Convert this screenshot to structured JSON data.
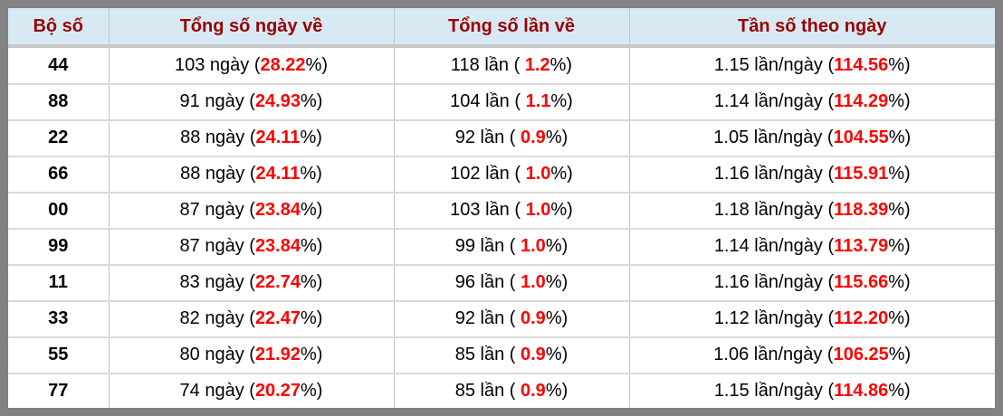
{
  "table": {
    "headers": [
      "Bộ số",
      "Tổng số ngày về",
      "Tổng số lần về",
      "Tần số theo ngày"
    ],
    "rows": [
      {
        "pair": "44",
        "days": {
          "pre": "103 ngày (",
          "pct": "28.22",
          "post": "%)"
        },
        "times": {
          "pre": "118 lần ( ",
          "pct": "1.2",
          "post": "%)"
        },
        "freq": {
          "pre": "1.15 lần/ngày (",
          "pct": "114.56",
          "post": "%)"
        }
      },
      {
        "pair": "88",
        "days": {
          "pre": "91 ngày (",
          "pct": "24.93",
          "post": "%)"
        },
        "times": {
          "pre": "104 lần ( ",
          "pct": "1.1",
          "post": "%)"
        },
        "freq": {
          "pre": "1.14 lần/ngày (",
          "pct": "114.29",
          "post": "%)"
        }
      },
      {
        "pair": "22",
        "days": {
          "pre": "88 ngày (",
          "pct": "24.11",
          "post": "%)"
        },
        "times": {
          "pre": "92 lần ( ",
          "pct": "0.9",
          "post": "%)"
        },
        "freq": {
          "pre": "1.05 lần/ngày (",
          "pct": "104.55",
          "post": "%)"
        }
      },
      {
        "pair": "66",
        "days": {
          "pre": "88 ngày (",
          "pct": "24.11",
          "post": "%)"
        },
        "times": {
          "pre": "102 lần ( ",
          "pct": "1.0",
          "post": "%)"
        },
        "freq": {
          "pre": "1.16 lần/ngày (",
          "pct": "115.91",
          "post": "%)"
        }
      },
      {
        "pair": "00",
        "days": {
          "pre": "87 ngày (",
          "pct": "23.84",
          "post": "%)"
        },
        "times": {
          "pre": "103 lần ( ",
          "pct": "1.0",
          "post": "%)"
        },
        "freq": {
          "pre": "1.18 lần/ngày (",
          "pct": "118.39",
          "post": "%)"
        }
      },
      {
        "pair": "99",
        "days": {
          "pre": "87 ngày (",
          "pct": "23.84",
          "post": "%)"
        },
        "times": {
          "pre": "99 lần ( ",
          "pct": "1.0",
          "post": "%)"
        },
        "freq": {
          "pre": "1.14 lần/ngày (",
          "pct": "113.79",
          "post": "%)"
        }
      },
      {
        "pair": "11",
        "days": {
          "pre": "83 ngày (",
          "pct": "22.74",
          "post": "%)"
        },
        "times": {
          "pre": "96 lần ( ",
          "pct": "1.0",
          "post": "%)"
        },
        "freq": {
          "pre": "1.16 lần/ngày (",
          "pct": "115.66",
          "post": "%)"
        }
      },
      {
        "pair": "33",
        "days": {
          "pre": "82 ngày (",
          "pct": "22.47",
          "post": "%)"
        },
        "times": {
          "pre": "92 lần ( ",
          "pct": "0.9",
          "post": "%)"
        },
        "freq": {
          "pre": "1.12 lần/ngày (",
          "pct": "112.20",
          "post": "%)"
        }
      },
      {
        "pair": "55",
        "days": {
          "pre": "80 ngày (",
          "pct": "21.92",
          "post": "%)"
        },
        "times": {
          "pre": "85 lần ( ",
          "pct": "0.9",
          "post": "%)"
        },
        "freq": {
          "pre": "1.06 lần/ngày (",
          "pct": "106.25",
          "post": "%)"
        }
      },
      {
        "pair": "77",
        "days": {
          "pre": "74 ngày (",
          "pct": "20.27",
          "post": "%)"
        },
        "times": {
          "pre": "85 lần ( ",
          "pct": "0.9",
          "post": "%)"
        },
        "freq": {
          "pre": "1.15 lần/ngày (",
          "pct": "114.86",
          "post": "%)"
        }
      }
    ]
  },
  "colors": {
    "outer_border": "#828282",
    "header_bg": "#d7eaf4",
    "header_text": "#990000",
    "header_rule": "#c9c9c9",
    "grid_line": "#d9d9d9",
    "grid_line_v": "#c3c3c3",
    "body_text": "#000000",
    "highlight": "#ff0000"
  },
  "chart_data": {
    "type": "table",
    "columns": [
      "Bộ số",
      "Tổng số ngày về",
      "Tổng số lần về",
      "Tần số theo ngày"
    ],
    "rows": [
      [
        "44",
        "103 ngày (28.22%)",
        "118 lần ( 1.2%)",
        "1.15 lần/ngày (114.56%)"
      ],
      [
        "88",
        "91 ngày (24.93%)",
        "104 lần ( 1.1%)",
        "1.14 lần/ngày (114.29%)"
      ],
      [
        "22",
        "88 ngày (24.11%)",
        "92 lần ( 0.9%)",
        "1.05 lần/ngày (104.55%)"
      ],
      [
        "66",
        "88 ngày (24.11%)",
        "102 lần ( 1.0%)",
        "1.16 lần/ngày (115.91%)"
      ],
      [
        "00",
        "87 ngày (23.84%)",
        "103 lần ( 1.0%)",
        "1.18 lần/ngày (118.39%)"
      ],
      [
        "99",
        "87 ngày (23.84%)",
        "99 lần ( 1.0%)",
        "1.14 lần/ngày (113.79%)"
      ],
      [
        "11",
        "83 ngày (22.74%)",
        "96 lần ( 1.0%)",
        "1.16 lần/ngày (115.66%)"
      ],
      [
        "33",
        "82 ngày (22.47%)",
        "92 lần ( 0.9%)",
        "1.12 lần/ngày (112.20%)"
      ],
      [
        "55",
        "80 ngày (21.92%)",
        "85 lần ( 0.9%)",
        "1.06 lần/ngày (106.25%)"
      ],
      [
        "77",
        "74 ngày (20.27%)",
        "85 lần ( 0.9%)",
        "1.15 lần/ngày (114.86%)"
      ]
    ]
  }
}
